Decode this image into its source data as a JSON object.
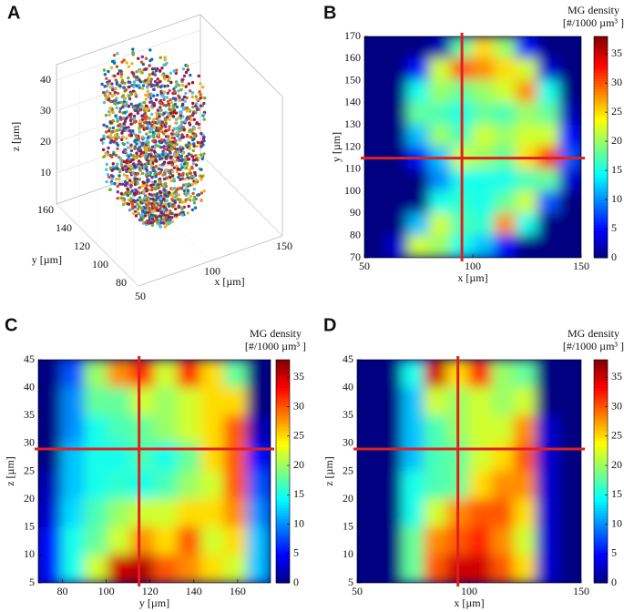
{
  "chart_data": [
    {
      "type": "scatter3d",
      "panel": "A",
      "xlabel": "x [µm]",
      "ylabel": "y [µm]",
      "zlabel": "z [µm]",
      "xticks": [
        50,
        100,
        150
      ],
      "yticks": [
        80,
        100,
        120,
        140,
        160
      ],
      "zticks": [
        10,
        20,
        30,
        40
      ],
      "dot_colors": [
        "#0072bd",
        "#d95319",
        "#edb120",
        "#7e2f8e",
        "#77ac30",
        "#4dbeee",
        "#a2142f"
      ]
    },
    {
      "type": "heatmap",
      "panel": "B",
      "xlabel": "x [µm]",
      "ylabel": "y [µm]",
      "xlim": [
        50,
        150
      ],
      "ylim": [
        70,
        170
      ],
      "xticks": [
        50,
        100,
        150
      ],
      "yticks": [
        70,
        80,
        90,
        100,
        110,
        120,
        130,
        140,
        150,
        160,
        170
      ],
      "colorbar": {
        "label": "MG density",
        "unit_label": "[#/1000 µm³ ]",
        "lim": [
          0,
          38
        ],
        "ticks": [
          0,
          5,
          10,
          15,
          20,
          25,
          30,
          35
        ]
      },
      "crosshair": {
        "x": 95,
        "y": 115,
        "color": "#e02020"
      },
      "matrix": [
        [
          0,
          0,
          0,
          2,
          18,
          25,
          20,
          5,
          0,
          0
        ],
        [
          0,
          0,
          5,
          22,
          30,
          28,
          25,
          22,
          3,
          0
        ],
        [
          0,
          0,
          15,
          20,
          18,
          20,
          22,
          28,
          15,
          0
        ],
        [
          0,
          0,
          18,
          17,
          15,
          18,
          17,
          20,
          18,
          2
        ],
        [
          0,
          0,
          12,
          20,
          17,
          22,
          20,
          22,
          22,
          5
        ],
        [
          0,
          0,
          5,
          12,
          22,
          20,
          18,
          25,
          32,
          8
        ],
        [
          0,
          0,
          0,
          10,
          15,
          15,
          15,
          17,
          18,
          3
        ],
        [
          0,
          0,
          0,
          15,
          16,
          15,
          18,
          22,
          8,
          0
        ],
        [
          0,
          0,
          12,
          22,
          17,
          16,
          28,
          15,
          0,
          0
        ],
        [
          0,
          3,
          22,
          20,
          15,
          12,
          5,
          0,
          0,
          0
        ]
      ]
    },
    {
      "type": "heatmap",
      "panel": "C",
      "xlabel": "y [µm]",
      "ylabel": "z [µm]",
      "xlim": [
        69,
        175
      ],
      "ylim": [
        5,
        45
      ],
      "xticks": [
        80,
        100,
        120,
        140,
        160
      ],
      "yticks": [
        5,
        10,
        15,
        20,
        25,
        30,
        35,
        40,
        45
      ],
      "colorbar": {
        "label": "MG density",
        "unit_label": "[#/1000 µm³ ]",
        "lim": [
          0,
          38
        ],
        "ticks": [
          0,
          5,
          10,
          15,
          20,
          25,
          30,
          35
        ]
      },
      "crosshair": {
        "x": 115,
        "y": 29,
        "color": "#e02020"
      },
      "matrix": [
        [
          0,
          8,
          20,
          28,
          32,
          22,
          32,
          25,
          18,
          0
        ],
        [
          0,
          10,
          18,
          18,
          22,
          20,
          22,
          25,
          25,
          0
        ],
        [
          0,
          10,
          15,
          17,
          18,
          20,
          22,
          25,
          30,
          2
        ],
        [
          0,
          12,
          15,
          15,
          17,
          15,
          18,
          25,
          30,
          5
        ],
        [
          2,
          12,
          15,
          16,
          15,
          17,
          20,
          22,
          30,
          8
        ],
        [
          3,
          13,
          17,
          20,
          22,
          22,
          25,
          25,
          28,
          10
        ],
        [
          5,
          15,
          18,
          22,
          28,
          25,
          30,
          22,
          25,
          12
        ],
        [
          5,
          15,
          22,
          35,
          36,
          30,
          28,
          25,
          22,
          12
        ]
      ]
    },
    {
      "type": "heatmap",
      "panel": "D",
      "xlabel": "x [µm]",
      "ylabel": "z [µm]",
      "xlim": [
        50,
        150
      ],
      "ylim": [
        5,
        45
      ],
      "xticks": [
        50,
        100,
        150
      ],
      "yticks": [
        5,
        10,
        15,
        20,
        25,
        30,
        35,
        40,
        45
      ],
      "colorbar": {
        "label": "MG density",
        "unit_label": "[#/1000 µm³ ]",
        "lim": [
          0,
          38
        ],
        "ticks": [
          0,
          5,
          10,
          15,
          20,
          25,
          30,
          35
        ]
      },
      "crosshair": {
        "x": 95,
        "y": 29,
        "color": "#e02020"
      },
      "matrix": [
        [
          0,
          0,
          15,
          35,
          25,
          32,
          20,
          18,
          0,
          0
        ],
        [
          0,
          0,
          12,
          22,
          20,
          22,
          20,
          22,
          0,
          0
        ],
        [
          0,
          0,
          12,
          17,
          20,
          22,
          22,
          28,
          3,
          0
        ],
        [
          0,
          0,
          12,
          17,
          18,
          22,
          25,
          30,
          3,
          0
        ],
        [
          0,
          0,
          15,
          17,
          18,
          25,
          28,
          28,
          3,
          0
        ],
        [
          0,
          0,
          15,
          22,
          28,
          30,
          30,
          25,
          3,
          0
        ],
        [
          0,
          0,
          18,
          28,
          30,
          32,
          28,
          22,
          3,
          0
        ],
        [
          0,
          0,
          18,
          30,
          35,
          35,
          30,
          25,
          3,
          0
        ]
      ]
    }
  ]
}
